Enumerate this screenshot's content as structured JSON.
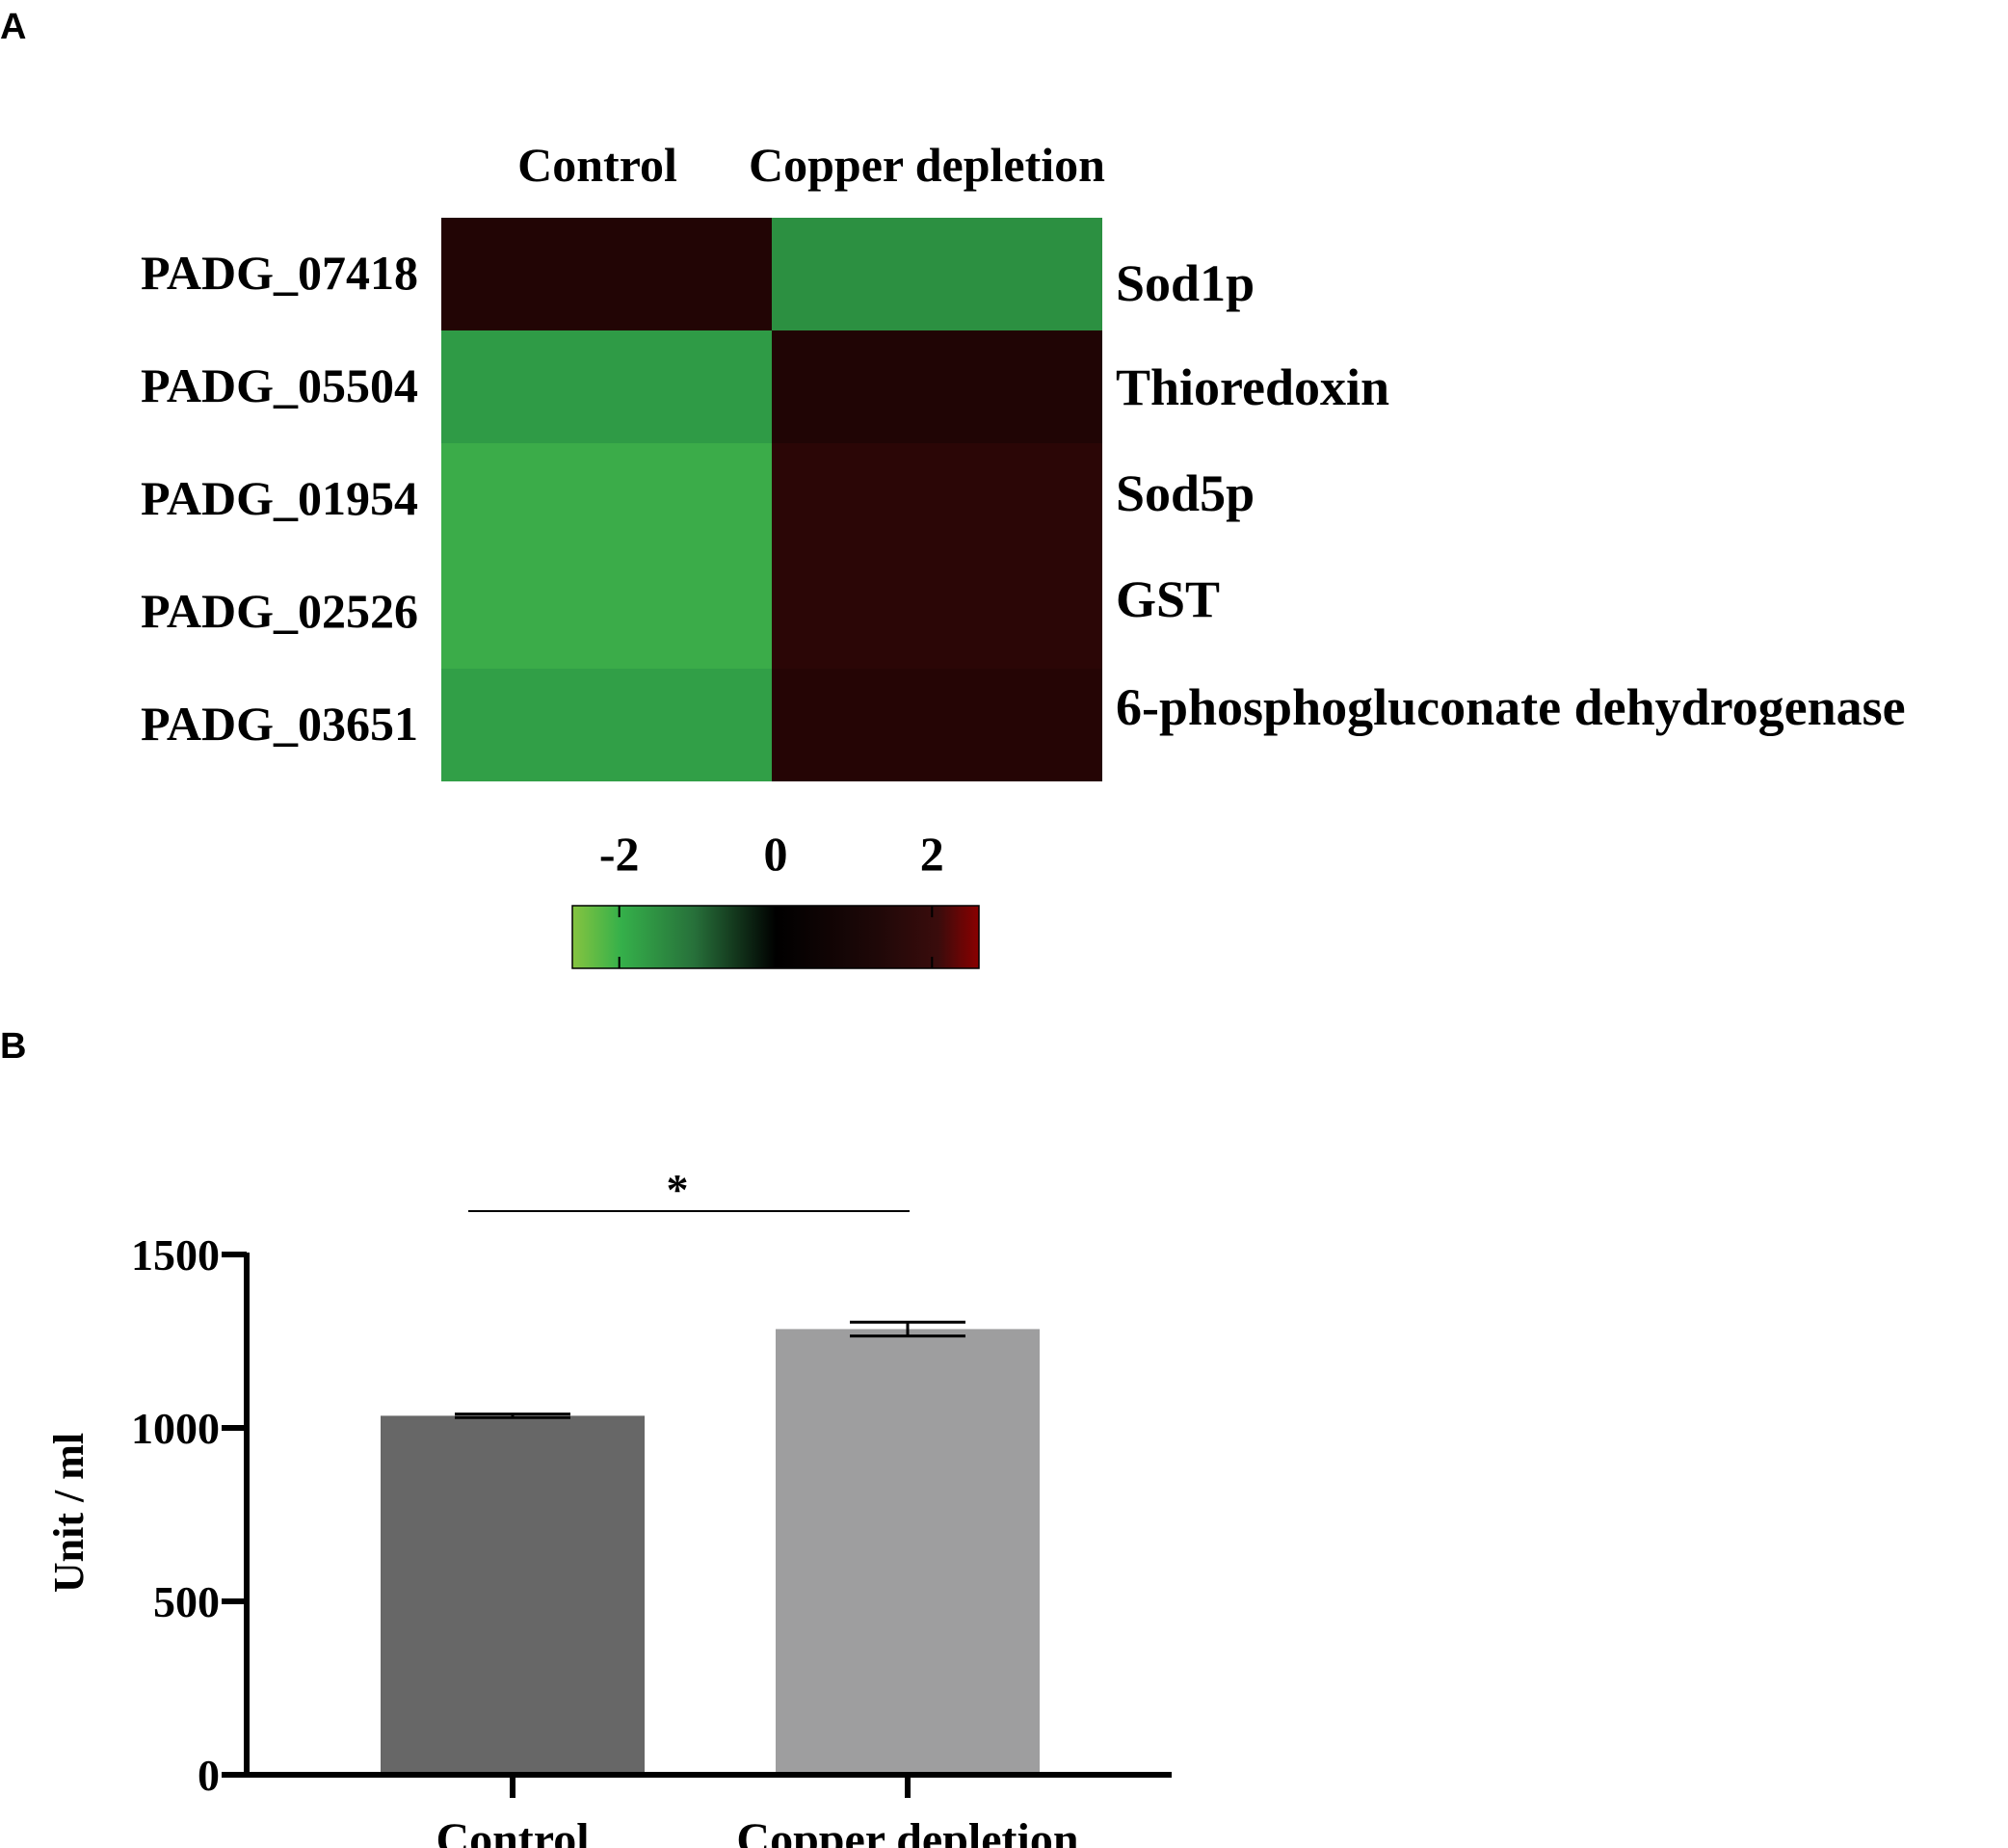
{
  "panels": {
    "a_label": "A",
    "b_label": "B"
  },
  "colors": {
    "heat_low": "#7cc143",
    "heat_mid_low": "#2f9c46",
    "heat_zero": "#000000",
    "heat_high": "#8b0000",
    "bar_control": "#676767",
    "bar_copper": "#9e9e9f"
  },
  "chart_data": [
    {
      "type": "heatmap",
      "columns": [
        "Control",
        "Copper depletion"
      ],
      "rows": [
        "PADG_07418",
        "PADG_05504",
        "PADG_01954",
        "PADG_02526",
        "PADG_03651"
      ],
      "row_annotations": [
        "Sod1p",
        "Thioredoxin",
        "Sod5p",
        "GST",
        "6-phosphogluconate dehydrogenase"
      ],
      "values": [
        [
          0.7,
          -1.6
        ],
        [
          -1.8,
          0.6
        ],
        [
          -2.3,
          1.1
        ],
        [
          -2.3,
          1.1
        ],
        [
          -1.9,
          0.8
        ]
      ],
      "color_scale": {
        "min": -2.6,
        "max": 2.6,
        "ticks": [
          -2,
          0,
          2
        ],
        "tick_labels": [
          "-2",
          "0",
          "2"
        ]
      }
    },
    {
      "type": "bar",
      "categories": [
        "Control",
        "Copper depletion"
      ],
      "values": [
        1035,
        1285
      ],
      "errors": [
        5,
        20
      ],
      "ylabel": "Unit / ml",
      "ylim": [
        0,
        1500
      ],
      "yticks": [
        0,
        500,
        1000,
        1500
      ],
      "ytick_labels": [
        "0",
        "500",
        "1000",
        "1500"
      ],
      "significance": {
        "between": [
          "Control",
          "Copper depletion"
        ],
        "label": "*"
      }
    }
  ]
}
